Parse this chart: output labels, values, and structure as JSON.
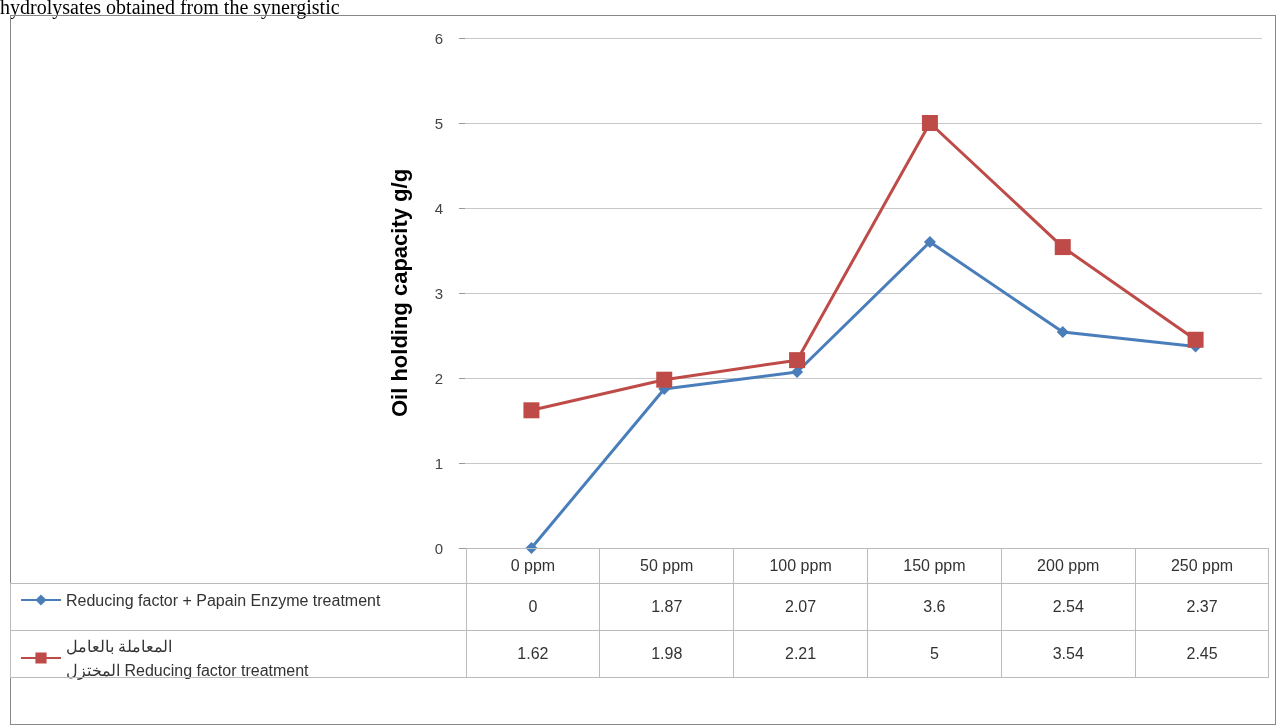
{
  "chart_data": {
    "type": "line",
    "ylabel": "Oil holding capacity g/g",
    "annotations": [
      "hydrolysates obtained from the synergistic"
    ],
    "categories": [
      "0 ppm",
      "50 ppm",
      "100 ppm",
      "150 ppm",
      "200 ppm",
      "250 ppm"
    ],
    "series": [
      {
        "name": "Reducing factor + Papain Enzyme treatment",
        "color": "#4a7ebb",
        "marker": "diamond",
        "values": [
          0,
          1.87,
          2.07,
          3.6,
          2.54,
          2.37
        ]
      },
      {
        "name": "المعاملة بالعامل المختزل Reducing factor treatment",
        "color": "#be4b48",
        "marker": "square",
        "values": [
          1.62,
          1.98,
          2.21,
          5,
          3.54,
          2.45
        ]
      }
    ],
    "ylim": [
      0,
      6
    ],
    "yticks": [
      0,
      1,
      2,
      3,
      4,
      5,
      6
    ],
    "grid": "y",
    "legend": "bottom",
    "data_labels": true
  }
}
